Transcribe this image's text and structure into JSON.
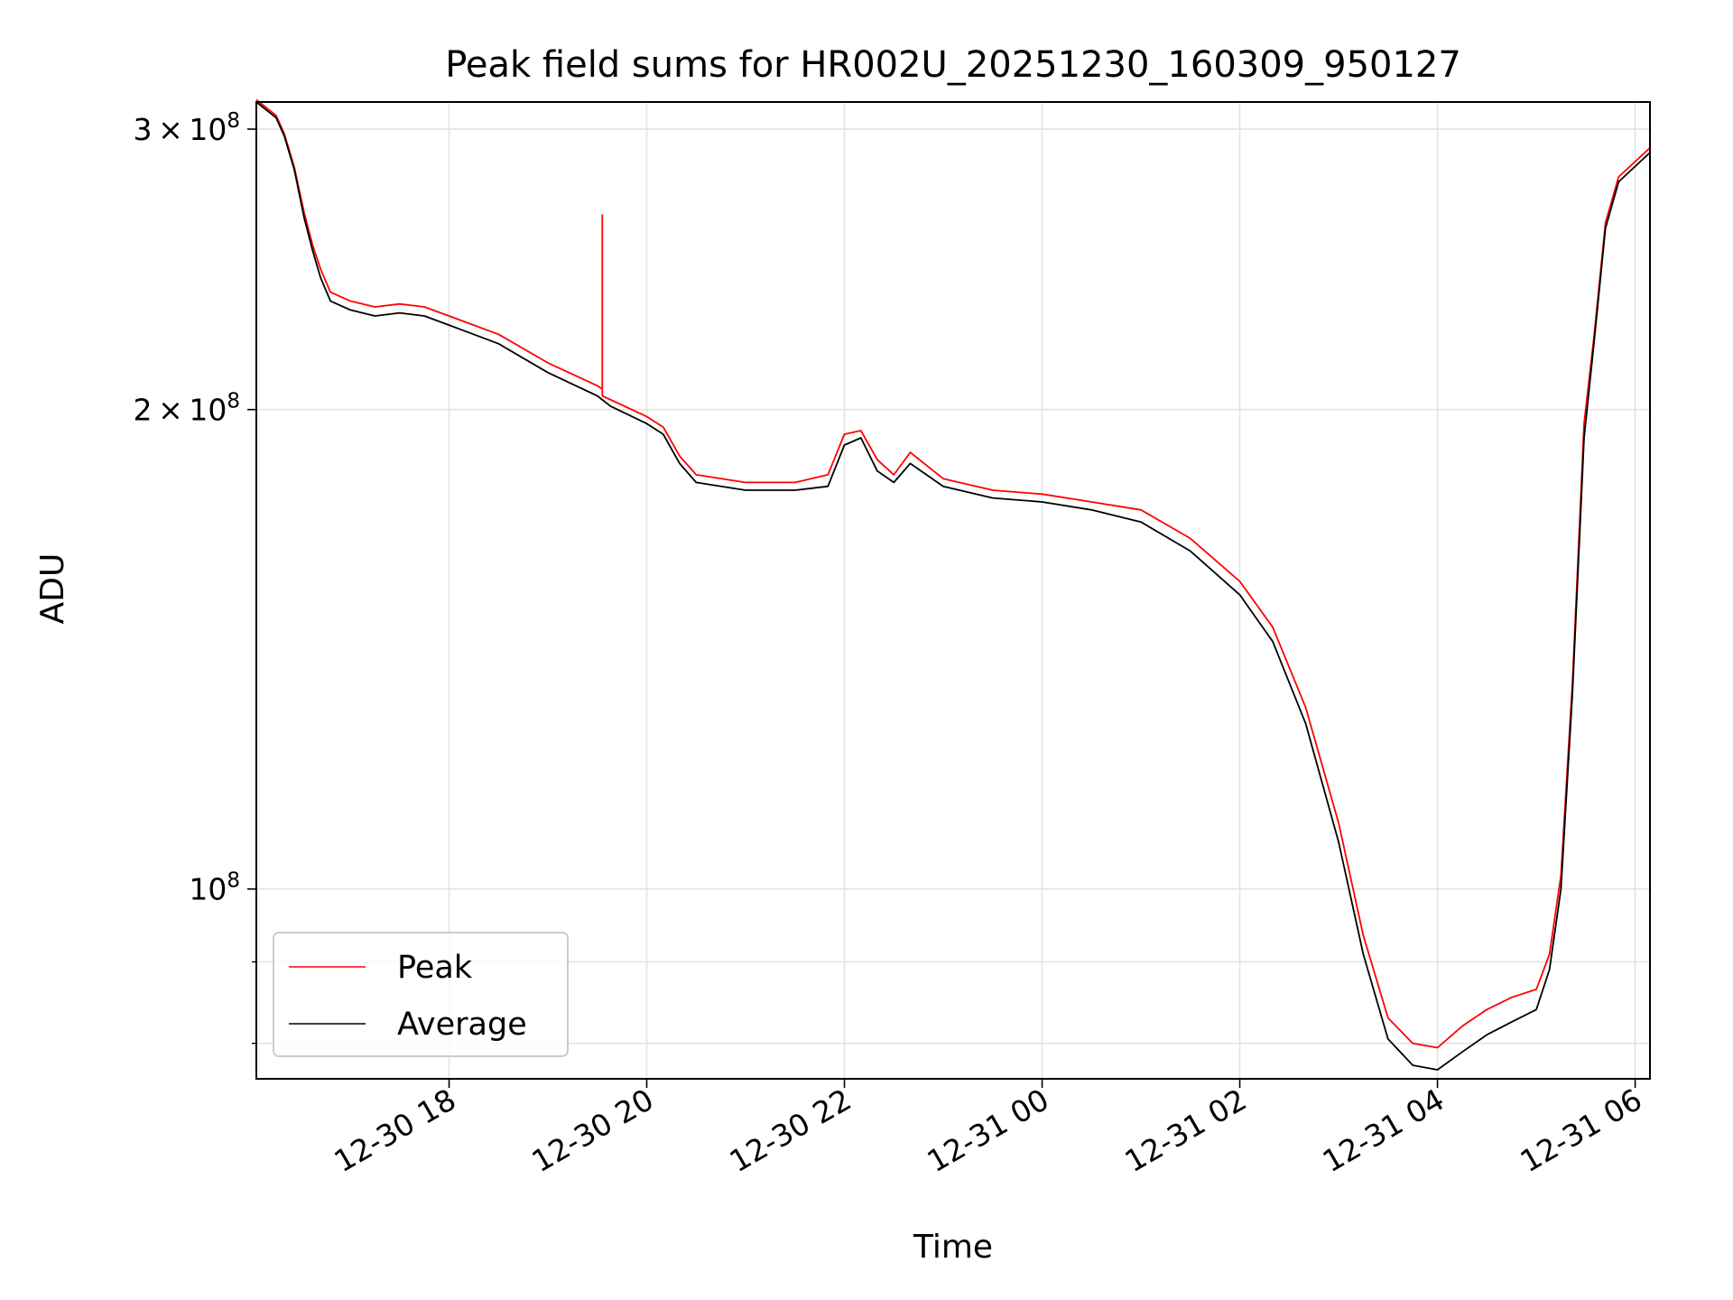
{
  "chart_data": {
    "type": "line",
    "title": "Peak field sums for HR002U_20251230_160309_950127",
    "xlabel": "Time",
    "ylabel": "ADU",
    "yscale": "log",
    "grid": true,
    "legend_position": "lower-left",
    "xlim": [
      "2025-12-30 16:03",
      "2025-12-31 06:09"
    ],
    "ylim": [
      76000000,
      312000000
    ],
    "x_ticks": [
      {
        "time": "2025-12-30 18:00",
        "label": "12-30 18"
      },
      {
        "time": "2025-12-30 20:00",
        "label": "12-30 20"
      },
      {
        "time": "2025-12-30 22:00",
        "label": "12-30 22"
      },
      {
        "time": "2025-12-31 00:00",
        "label": "12-31 00"
      },
      {
        "time": "2025-12-31 02:00",
        "label": "12-31 02"
      },
      {
        "time": "2025-12-31 04:00",
        "label": "12-31 04"
      },
      {
        "time": "2025-12-31 06:00",
        "label": "12-31 06"
      }
    ],
    "y_ticks": [
      {
        "value": 100000000,
        "mantissa": "",
        "exponent": "8"
      },
      {
        "value": 200000000,
        "mantissa": "2",
        "exponent": "8"
      },
      {
        "value": 300000000,
        "mantissa": "3",
        "exponent": "8"
      }
    ],
    "series": [
      {
        "name": "Average",
        "color": "#000000",
        "points": [
          [
            "2025-12-30 16:03",
            312000000
          ],
          [
            "2025-12-30 16:15",
            305000000
          ],
          [
            "2025-12-30 16:20",
            297000000
          ],
          [
            "2025-12-30 16:26",
            283000000
          ],
          [
            "2025-12-30 16:32",
            264000000
          ],
          [
            "2025-12-30 16:37",
            252000000
          ],
          [
            "2025-12-30 16:42",
            242000000
          ],
          [
            "2025-12-30 16:48",
            234000000
          ],
          [
            "2025-12-30 17:00",
            231000000
          ],
          [
            "2025-12-30 17:15",
            229000000
          ],
          [
            "2025-12-30 17:30",
            230000000
          ],
          [
            "2025-12-30 17:45",
            229000000
          ],
          [
            "2025-12-30 18:00",
            226000000
          ],
          [
            "2025-12-30 18:30",
            220000000
          ],
          [
            "2025-12-30 19:00",
            211000000
          ],
          [
            "2025-12-30 19:30",
            204000000
          ],
          [
            "2025-12-30 19:38",
            201000000
          ],
          [
            "2025-12-30 20:00",
            196000000
          ],
          [
            "2025-12-30 20:10",
            193000000
          ],
          [
            "2025-12-30 20:20",
            185000000
          ],
          [
            "2025-12-30 20:30",
            180000000
          ],
          [
            "2025-12-30 21:00",
            178000000
          ],
          [
            "2025-12-30 21:30",
            178000000
          ],
          [
            "2025-12-30 21:50",
            179000000
          ],
          [
            "2025-12-30 22:00",
            190000000
          ],
          [
            "2025-12-30 22:10",
            192000000
          ],
          [
            "2025-12-30 22:20",
            183000000
          ],
          [
            "2025-12-30 22:30",
            180000000
          ],
          [
            "2025-12-30 22:40",
            185000000
          ],
          [
            "2025-12-30 23:00",
            179000000
          ],
          [
            "2025-12-30 23:30",
            176000000
          ],
          [
            "2025-12-31 00:00",
            175000000
          ],
          [
            "2025-12-31 00:30",
            173000000
          ],
          [
            "2025-12-31 01:00",
            170000000
          ],
          [
            "2025-12-31 01:30",
            163000000
          ],
          [
            "2025-12-31 02:00",
            153000000
          ],
          [
            "2025-12-31 02:20",
            143000000
          ],
          [
            "2025-12-31 02:40",
            127000000
          ],
          [
            "2025-12-31 03:00",
            107000000
          ],
          [
            "2025-12-31 03:15",
            91000000
          ],
          [
            "2025-12-31 03:30",
            80500000
          ],
          [
            "2025-12-31 03:45",
            77500000
          ],
          [
            "2025-12-31 04:00",
            77000000
          ],
          [
            "2025-12-31 04:15",
            79000000
          ],
          [
            "2025-12-31 04:30",
            81000000
          ],
          [
            "2025-12-31 04:45",
            82500000
          ],
          [
            "2025-12-31 05:00",
            84000000
          ],
          [
            "2025-12-31 05:08",
            89000000
          ],
          [
            "2025-12-31 05:15",
            100000000
          ],
          [
            "2025-12-31 05:22",
            133000000
          ],
          [
            "2025-12-31 05:29",
            192000000
          ],
          [
            "2025-12-31 05:35",
            220000000
          ],
          [
            "2025-12-31 05:42",
            260000000
          ],
          [
            "2025-12-31 05:50",
            278000000
          ],
          [
            "2025-12-31 06:09",
            290000000
          ]
        ]
      },
      {
        "name": "Peak",
        "color": "#ff0000",
        "points": [
          [
            "2025-12-30 16:03",
            313000000
          ],
          [
            "2025-12-30 16:15",
            306000000
          ],
          [
            "2025-12-30 16:20",
            298000000
          ],
          [
            "2025-12-30 16:26",
            284000000
          ],
          [
            "2025-12-30 16:32",
            266000000
          ],
          [
            "2025-12-30 16:37",
            254000000
          ],
          [
            "2025-12-30 16:42",
            245000000
          ],
          [
            "2025-12-30 16:48",
            237000000
          ],
          [
            "2025-12-30 17:00",
            234000000
          ],
          [
            "2025-12-30 17:15",
            232000000
          ],
          [
            "2025-12-30 17:30",
            233000000
          ],
          [
            "2025-12-30 17:45",
            232000000
          ],
          [
            "2025-12-30 18:00",
            229000000
          ],
          [
            "2025-12-30 18:30",
            223000000
          ],
          [
            "2025-12-30 19:00",
            214000000
          ],
          [
            "2025-12-30 19:30",
            207000000
          ],
          [
            "2025-12-30 19:33",
            206000000
          ],
          [
            "2025-12-30 19:33",
            265000000
          ],
          [
            "2025-12-30 19:33",
            204000000
          ],
          [
            "2025-12-30 20:00",
            198000000
          ],
          [
            "2025-12-30 20:10",
            195000000
          ],
          [
            "2025-12-30 20:20",
            187000000
          ],
          [
            "2025-12-30 20:30",
            182000000
          ],
          [
            "2025-12-30 21:00",
            180000000
          ],
          [
            "2025-12-30 21:30",
            180000000
          ],
          [
            "2025-12-30 21:50",
            182000000
          ],
          [
            "2025-12-30 22:00",
            193000000
          ],
          [
            "2025-12-30 22:10",
            194000000
          ],
          [
            "2025-12-30 22:20",
            186000000
          ],
          [
            "2025-12-30 22:30",
            182000000
          ],
          [
            "2025-12-30 22:40",
            188000000
          ],
          [
            "2025-12-30 23:00",
            181000000
          ],
          [
            "2025-12-30 23:30",
            178000000
          ],
          [
            "2025-12-31 00:00",
            177000000
          ],
          [
            "2025-12-31 00:30",
            175000000
          ],
          [
            "2025-12-31 01:00",
            173000000
          ],
          [
            "2025-12-31 01:30",
            166000000
          ],
          [
            "2025-12-31 02:00",
            156000000
          ],
          [
            "2025-12-31 02:20",
            146000000
          ],
          [
            "2025-12-31 02:40",
            130000000
          ],
          [
            "2025-12-31 03:00",
            110000000
          ],
          [
            "2025-12-31 03:15",
            93500000
          ],
          [
            "2025-12-31 03:30",
            83000000
          ],
          [
            "2025-12-31 03:45",
            80000000
          ],
          [
            "2025-12-31 04:00",
            79500000
          ],
          [
            "2025-12-31 04:15",
            82000000
          ],
          [
            "2025-12-31 04:30",
            84000000
          ],
          [
            "2025-12-31 04:45",
            85500000
          ],
          [
            "2025-12-31 05:00",
            86500000
          ],
          [
            "2025-12-31 05:08",
            91000000
          ],
          [
            "2025-12-31 05:15",
            102000000
          ],
          [
            "2025-12-31 05:22",
            135000000
          ],
          [
            "2025-12-31 05:29",
            196000000
          ],
          [
            "2025-12-31 05:35",
            222000000
          ],
          [
            "2025-12-31 05:42",
            262000000
          ],
          [
            "2025-12-31 05:50",
            280000000
          ],
          [
            "2025-12-31 06:09",
            292000000
          ]
        ]
      }
    ]
  }
}
